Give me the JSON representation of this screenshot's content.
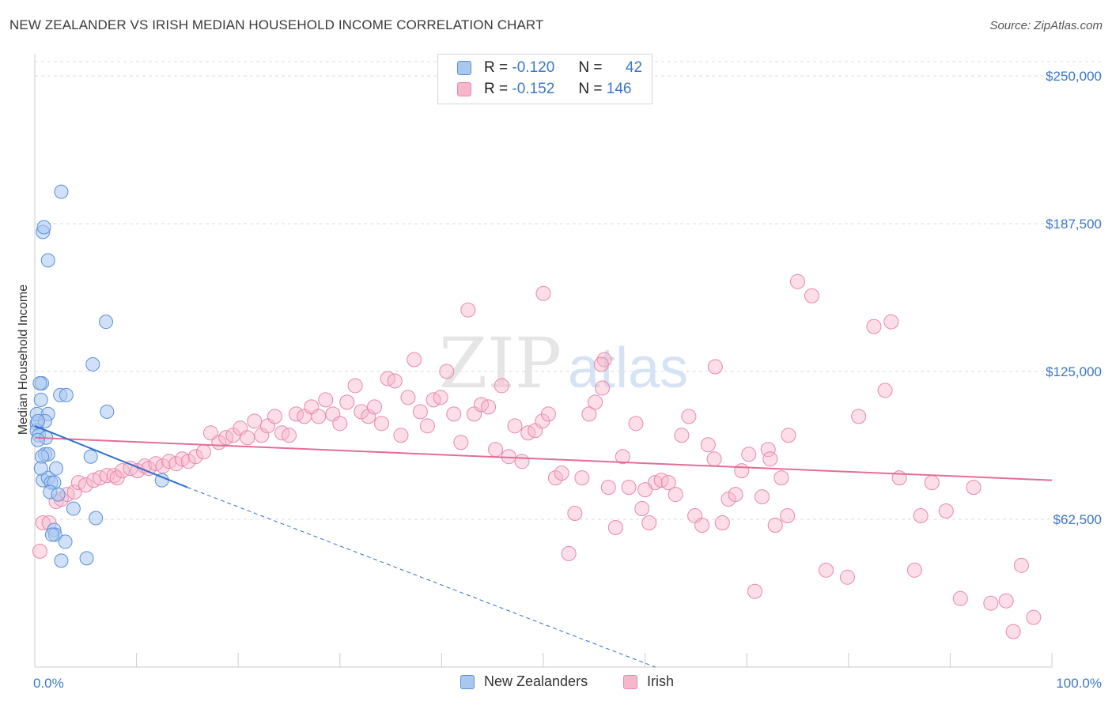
{
  "title": "NEW ZEALANDER VS IRISH MEDIAN HOUSEHOLD INCOME CORRELATION CHART",
  "source": "Source: ZipAtlas.com",
  "watermark": {
    "zip": "ZIP",
    "atlas": "atlas"
  },
  "legend": {
    "rows": [
      {
        "r_label": "R =",
        "r_value": "-0.120",
        "n_label": "N =",
        "n_value": "42"
      },
      {
        "r_label": "R =",
        "r_value": "-0.152",
        "n_label": "N =",
        "n_value": "146"
      }
    ]
  },
  "bottom_legend": [
    "New Zealanders",
    "Irish"
  ],
  "colors": {
    "blue_fill": "#a9c8f0",
    "blue_stroke": "#5b8fd9",
    "blue_line": "#2f6fcf",
    "pink_fill": "#f6b6cb",
    "pink_stroke": "#e988a9",
    "pink_line": "#e46d98",
    "tick_text": "#3d78c9",
    "grid": "#dddddd"
  },
  "chart_data": {
    "type": "scatter",
    "title": "NEW ZEALANDER VS IRISH MEDIAN HOUSEHOLD INCOME CORRELATION CHART",
    "xlabel": "",
    "ylabel": "Median Household Income",
    "xlim": [
      0,
      100
    ],
    "ylim": [
      0,
      250000
    ],
    "x_tick_labels": [
      "0.0%",
      "100.0%"
    ],
    "y_ticks": [
      62500,
      125000,
      187500,
      250000
    ],
    "y_tick_labels": [
      "$62,500",
      "$125,000",
      "$187,500",
      "$250,000"
    ],
    "grid": "horizontal dashed",
    "legend_position": "top-center",
    "series": [
      {
        "name": "New Zealanders",
        "r": -0.12,
        "n": 42,
        "trend": {
          "x0": 0.0,
          "y0": 102000,
          "x1": 15.0,
          "y1": 76000,
          "dashed_to_x": 61.0,
          "dashed_to_y": 0
        },
        "points": [
          [
            0.2,
            103000
          ],
          [
            0.2,
            100000
          ],
          [
            0.4,
            98000
          ],
          [
            0.2,
            107000
          ],
          [
            0.6,
            113000
          ],
          [
            0.7,
            120000
          ],
          [
            0.5,
            120000
          ],
          [
            0.8,
            184000
          ],
          [
            0.9,
            186000
          ],
          [
            1.3,
            172000
          ],
          [
            1.3,
            107000
          ],
          [
            1.0,
            104000
          ],
          [
            1.1,
            97000
          ],
          [
            1.0,
            90000
          ],
          [
            1.3,
            90000
          ],
          [
            0.7,
            89000
          ],
          [
            0.8,
            79000
          ],
          [
            1.3,
            80000
          ],
          [
            1.6,
            78000
          ],
          [
            1.9,
            78000
          ],
          [
            2.1,
            84000
          ],
          [
            2.5,
            115000
          ],
          [
            3.1,
            115000
          ],
          [
            2.6,
            201000
          ],
          [
            1.5,
            74000
          ],
          [
            2.3,
            73000
          ],
          [
            1.9,
            58000
          ],
          [
            2.0,
            56000
          ],
          [
            3.8,
            67000
          ],
          [
            3.0,
            53000
          ],
          [
            2.6,
            45000
          ],
          [
            5.1,
            46000
          ],
          [
            5.7,
            128000
          ],
          [
            7.0,
            146000
          ],
          [
            7.1,
            108000
          ],
          [
            5.5,
            89000
          ],
          [
            6.0,
            63000
          ],
          [
            12.5,
            79000
          ],
          [
            0.6,
            84000
          ],
          [
            0.3,
            104000
          ],
          [
            1.7,
            56000
          ],
          [
            0.3,
            96000
          ]
        ]
      },
      {
        "name": "Irish",
        "r": -0.152,
        "n": 146,
        "trend": {
          "x0": 0.0,
          "y0": 97000,
          "x1": 100.0,
          "y1": 79000
        },
        "points": [
          [
            0.5,
            49000
          ],
          [
            0.8,
            61000
          ],
          [
            1.4,
            61000
          ],
          [
            2.1,
            70000
          ],
          [
            2.6,
            71000
          ],
          [
            3.2,
            73000
          ],
          [
            3.9,
            74000
          ],
          [
            4.3,
            78000
          ],
          [
            5.0,
            77000
          ],
          [
            5.8,
            79000
          ],
          [
            6.4,
            80000
          ],
          [
            7.1,
            81000
          ],
          [
            7.8,
            81000
          ],
          [
            8.1,
            80000
          ],
          [
            8.6,
            83000
          ],
          [
            9.4,
            84000
          ],
          [
            10.1,
            83000
          ],
          [
            10.8,
            85000
          ],
          [
            11.2,
            84000
          ],
          [
            11.9,
            86000
          ],
          [
            12.6,
            85000
          ],
          [
            13.2,
            87000
          ],
          [
            13.9,
            86000
          ],
          [
            14.5,
            88000
          ],
          [
            15.1,
            87000
          ],
          [
            15.8,
            89000
          ],
          [
            16.6,
            91000
          ],
          [
            17.3,
            99000
          ],
          [
            18.1,
            95000
          ],
          [
            18.8,
            97000
          ],
          [
            19.5,
            98000
          ],
          [
            20.2,
            101000
          ],
          [
            20.9,
            97000
          ],
          [
            21.6,
            104000
          ],
          [
            22.3,
            98000
          ],
          [
            22.9,
            102000
          ],
          [
            23.6,
            106000
          ],
          [
            24.3,
            99000
          ],
          [
            25.0,
            98000
          ],
          [
            25.7,
            107000
          ],
          [
            26.5,
            106000
          ],
          [
            27.2,
            110000
          ],
          [
            27.9,
            106000
          ],
          [
            28.6,
            113000
          ],
          [
            29.3,
            107000
          ],
          [
            30.0,
            103000
          ],
          [
            30.7,
            112000
          ],
          [
            31.5,
            119000
          ],
          [
            32.1,
            108000
          ],
          [
            32.8,
            106000
          ],
          [
            33.4,
            110000
          ],
          [
            34.1,
            103000
          ],
          [
            34.7,
            122000
          ],
          [
            35.4,
            121000
          ],
          [
            36.0,
            98000
          ],
          [
            36.7,
            114000
          ],
          [
            37.3,
            130000
          ],
          [
            37.9,
            108000
          ],
          [
            38.6,
            102000
          ],
          [
            39.2,
            113000
          ],
          [
            39.9,
            114000
          ],
          [
            40.5,
            125000
          ],
          [
            41.2,
            107000
          ],
          [
            41.9,
            95000
          ],
          [
            42.6,
            151000
          ],
          [
            43.2,
            107000
          ],
          [
            43.9,
            111000
          ],
          [
            44.6,
            110000
          ],
          [
            45.3,
            92000
          ],
          [
            45.9,
            119000
          ],
          [
            46.6,
            89000
          ],
          [
            47.2,
            102000
          ],
          [
            47.9,
            87000
          ],
          [
            48.5,
            99000
          ],
          [
            49.2,
            100000
          ],
          [
            49.9,
            104000
          ],
          [
            50.5,
            107000
          ],
          [
            51.2,
            80000
          ],
          [
            51.8,
            82000
          ],
          [
            52.5,
            48000
          ],
          [
            53.1,
            65000
          ],
          [
            53.8,
            80000
          ],
          [
            54.5,
            107000
          ],
          [
            55.1,
            112000
          ],
          [
            55.8,
            118000
          ],
          [
            56.4,
            76000
          ],
          [
            57.1,
            59000
          ],
          [
            57.8,
            89000
          ],
          [
            58.4,
            76000
          ],
          [
            59.1,
            103000
          ],
          [
            59.7,
            67000
          ],
          [
            60.4,
            61000
          ],
          [
            61.0,
            78000
          ],
          [
            61.6,
            79000
          ],
          [
            62.3,
            78000
          ],
          [
            63.0,
            73000
          ],
          [
            63.6,
            98000
          ],
          [
            64.3,
            106000
          ],
          [
            64.9,
            64000
          ],
          [
            65.6,
            60000
          ],
          [
            66.2,
            94000
          ],
          [
            66.9,
            127000
          ],
          [
            67.6,
            61000
          ],
          [
            68.2,
            71000
          ],
          [
            68.9,
            73000
          ],
          [
            69.5,
            83000
          ],
          [
            70.2,
            90000
          ],
          [
            70.8,
            32000
          ],
          [
            71.5,
            72000
          ],
          [
            72.1,
            92000
          ],
          [
            72.8,
            60000
          ],
          [
            73.4,
            80000
          ],
          [
            74.1,
            98000
          ],
          [
            75.0,
            163000
          ],
          [
            76.4,
            157000
          ],
          [
            77.8,
            41000
          ],
          [
            79.9,
            38000
          ],
          [
            81.0,
            106000
          ],
          [
            82.5,
            144000
          ],
          [
            83.6,
            117000
          ],
          [
            84.2,
            146000
          ],
          [
            85.0,
            80000
          ],
          [
            86.5,
            41000
          ],
          [
            87.1,
            64000
          ],
          [
            88.2,
            78000
          ],
          [
            89.6,
            66000
          ],
          [
            91.0,
            29000
          ],
          [
            92.3,
            76000
          ],
          [
            94.0,
            27000
          ],
          [
            95.5,
            28000
          ],
          [
            96.2,
            15000
          ],
          [
            97.0,
            43000
          ],
          [
            98.2,
            21000
          ],
          [
            50.0,
            158000
          ],
          [
            56.0,
            130000
          ],
          [
            55.7,
            128000
          ],
          [
            74.0,
            64000
          ],
          [
            72.3,
            88000
          ],
          [
            66.8,
            88000
          ],
          [
            60.0,
            75000
          ]
        ]
      }
    ]
  }
}
